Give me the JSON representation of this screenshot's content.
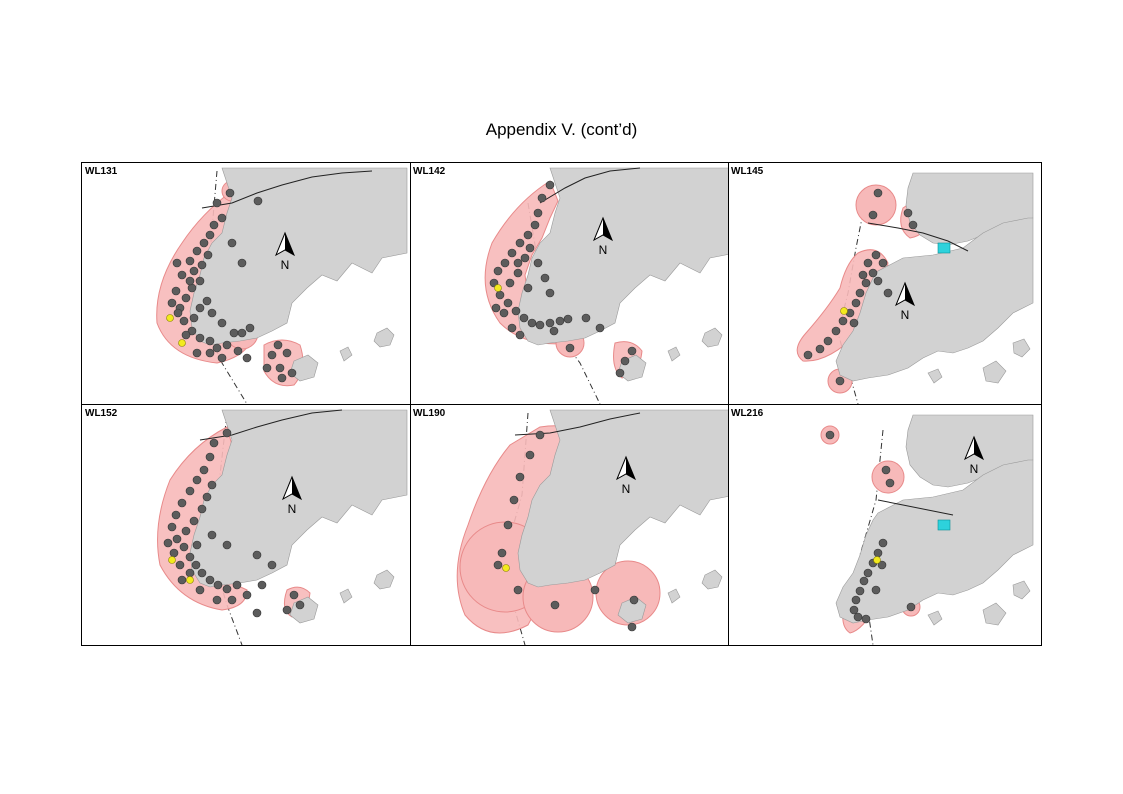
{
  "page_title": "Appendix V.  (cont’d)",
  "north_label": "N",
  "colors": {
    "land": "#d2d2d2",
    "range": "#f7b9b9",
    "range_edge": "#e88a8a",
    "sighting": "#5c5c5c",
    "highlight_sighting": "#f3ea1e",
    "structure": "#2dd2dc",
    "boundary_line": "#333333"
  },
  "panels": [
    {
      "id": "WL131"
    },
    {
      "id": "WL142"
    },
    {
      "id": "WL145"
    },
    {
      "id": "WL152"
    },
    {
      "id": "WL190"
    },
    {
      "id": "WL216"
    }
  ]
}
